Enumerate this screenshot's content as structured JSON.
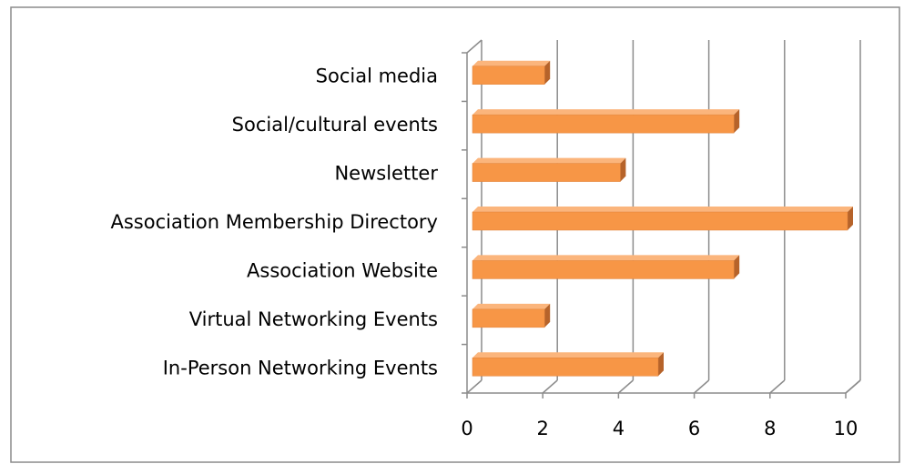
{
  "chart_data": {
    "type": "bar",
    "orientation": "horizontal",
    "three_d": true,
    "categories": [
      "In-Person Networking Events",
      "Virtual Networking Events",
      "Association Website",
      "Association Membership Directory",
      "Newsletter",
      "Social/cultural events",
      "Social media"
    ],
    "values": [
      5,
      2,
      7,
      10,
      4,
      7,
      2
    ],
    "color": "#f79646",
    "xlim": [
      0,
      10
    ],
    "xticks": [
      0,
      2,
      4,
      6,
      8,
      10
    ],
    "grid": true
  }
}
